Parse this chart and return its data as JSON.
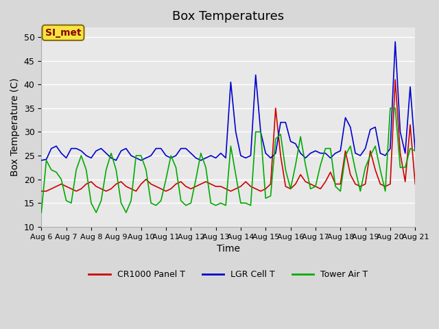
{
  "title": "Box Temperatures",
  "xlabel": "Time",
  "ylabel": "Box Temperature (C)",
  "ylim": [
    10,
    52
  ],
  "xlim": [
    0,
    15
  ],
  "background_color": "#e8e8e8",
  "plot_bg_color": "#e8e8e8",
  "grid_color": "white",
  "annotation_text": "SI_met",
  "annotation_bg": "#f5e642",
  "annotation_border": "#8B6914",
  "annotation_text_color": "#8B0000",
  "xtick_labels": [
    "Aug 6",
    "Aug 7",
    "Aug 8",
    "Aug 9",
    "Aug 10",
    "Aug 11",
    "Aug 12",
    "Aug 13",
    "Aug 14",
    "Aug 15",
    "Aug 16",
    "Aug 17",
    "Aug 18",
    "Aug 19",
    "Aug 20",
    "Aug 21"
  ],
  "ytick_values": [
    10,
    15,
    20,
    25,
    30,
    35,
    40,
    45,
    50
  ],
  "legend_entries": [
    "CR1000 Panel T",
    "LGR Cell T",
    "Tower Air T"
  ],
  "legend_colors": [
    "#cc0000",
    "#0000cc",
    "#00aa00"
  ],
  "series_colors": [
    "#cc0000",
    "#0000cc",
    "#00aa00"
  ],
  "red_x": [
    0,
    0.2,
    0.4,
    0.6,
    0.8,
    1.0,
    1.2,
    1.4,
    1.6,
    1.8,
    2.0,
    2.2,
    2.4,
    2.6,
    2.8,
    3.0,
    3.2,
    3.4,
    3.6,
    3.8,
    4.0,
    4.2,
    4.4,
    4.6,
    4.8,
    5.0,
    5.2,
    5.4,
    5.6,
    5.8,
    6.0,
    6.2,
    6.4,
    6.6,
    6.8,
    7.0,
    7.2,
    7.4,
    7.6,
    7.8,
    8.0,
    8.2,
    8.4,
    8.6,
    8.8,
    9.0,
    9.2,
    9.4,
    9.6,
    9.8,
    10.0,
    10.2,
    10.4,
    10.6,
    10.8,
    11.0,
    11.2,
    11.4,
    11.6,
    11.8,
    12.0,
    12.2,
    12.4,
    12.6,
    12.8,
    13.0,
    13.2,
    13.4,
    13.6,
    13.8,
    14.0,
    14.2,
    14.4,
    14.6,
    14.8,
    15.0
  ],
  "red_y": [
    17.5,
    17.5,
    18.0,
    18.5,
    19.0,
    18.5,
    18.0,
    17.5,
    18.0,
    19.0,
    19.5,
    18.5,
    18.0,
    17.5,
    18.0,
    19.0,
    19.5,
    18.5,
    18.0,
    17.5,
    19.0,
    20.0,
    19.0,
    18.5,
    18.0,
    17.5,
    18.0,
    19.0,
    19.5,
    18.5,
    18.0,
    18.5,
    19.0,
    19.5,
    19.0,
    18.5,
    18.5,
    18.0,
    17.5,
    18.0,
    18.5,
    19.5,
    18.5,
    18.0,
    17.5,
    18.0,
    19.0,
    35.0,
    25.0,
    18.5,
    18.0,
    19.0,
    21.0,
    19.5,
    19.0,
    18.5,
    18.0,
    19.5,
    21.5,
    19.0,
    19.0,
    26.0,
    21.0,
    19.0,
    18.5,
    19.0,
    26.0,
    22.0,
    19.0,
    18.5,
    19.0,
    41.0,
    25.5,
    19.5,
    31.5,
    19.0
  ],
  "blue_x": [
    0,
    0.2,
    0.4,
    0.6,
    0.8,
    1.0,
    1.2,
    1.4,
    1.6,
    1.8,
    2.0,
    2.2,
    2.4,
    2.6,
    2.8,
    3.0,
    3.2,
    3.4,
    3.6,
    3.8,
    4.0,
    4.2,
    4.4,
    4.6,
    4.8,
    5.0,
    5.2,
    5.4,
    5.6,
    5.8,
    6.0,
    6.2,
    6.4,
    6.6,
    6.8,
    7.0,
    7.2,
    7.4,
    7.6,
    7.8,
    8.0,
    8.2,
    8.4,
    8.6,
    8.8,
    9.0,
    9.2,
    9.4,
    9.6,
    9.8,
    10.0,
    10.2,
    10.4,
    10.6,
    10.8,
    11.0,
    11.2,
    11.4,
    11.6,
    11.8,
    12.0,
    12.2,
    12.4,
    12.6,
    12.8,
    13.0,
    13.2,
    13.4,
    13.6,
    13.8,
    14.0,
    14.2,
    14.4,
    14.6,
    14.8,
    15.0
  ],
  "blue_y": [
    24.0,
    24.2,
    26.5,
    27.0,
    25.5,
    24.5,
    26.5,
    26.5,
    26.0,
    25.0,
    24.5,
    26.0,
    26.5,
    25.5,
    24.5,
    24.0,
    26.0,
    26.5,
    25.0,
    24.5,
    24.0,
    24.5,
    25.0,
    26.5,
    26.5,
    25.0,
    24.5,
    25.0,
    26.5,
    26.5,
    25.5,
    24.5,
    24.0,
    24.5,
    25.0,
    24.5,
    25.5,
    24.5,
    40.5,
    30.0,
    25.0,
    24.5,
    25.0,
    42.0,
    30.0,
    25.5,
    24.5,
    25.5,
    32.0,
    32.0,
    28.0,
    27.5,
    25.5,
    24.5,
    25.5,
    26.0,
    25.5,
    25.5,
    24.5,
    25.5,
    26.0,
    33.0,
    31.0,
    25.5,
    25.0,
    26.5,
    30.5,
    31.0,
    25.5,
    25.0,
    26.5,
    49.0,
    30.0,
    25.5,
    39.5,
    26.0
  ],
  "green_x": [
    0,
    0.2,
    0.4,
    0.6,
    0.8,
    1.0,
    1.2,
    1.4,
    1.6,
    1.8,
    2.0,
    2.2,
    2.4,
    2.6,
    2.8,
    3.0,
    3.2,
    3.4,
    3.6,
    3.8,
    4.0,
    4.2,
    4.4,
    4.6,
    4.8,
    5.0,
    5.2,
    5.4,
    5.6,
    5.8,
    6.0,
    6.2,
    6.4,
    6.6,
    6.8,
    7.0,
    7.2,
    7.4,
    7.6,
    7.8,
    8.0,
    8.2,
    8.4,
    8.6,
    8.8,
    9.0,
    9.2,
    9.4,
    9.6,
    9.8,
    10.0,
    10.2,
    10.4,
    10.6,
    10.8,
    11.0,
    11.2,
    11.4,
    11.6,
    11.8,
    12.0,
    12.2,
    12.4,
    12.6,
    12.8,
    13.0,
    13.2,
    13.4,
    13.6,
    13.8,
    14.0,
    14.2,
    14.4,
    14.6,
    14.8,
    15.0
  ],
  "green_y": [
    13.0,
    24.0,
    22.0,
    21.5,
    20.0,
    15.5,
    15.0,
    22.0,
    25.0,
    22.0,
    15.0,
    13.0,
    15.5,
    22.0,
    25.5,
    22.0,
    15.0,
    13.0,
    15.5,
    25.0,
    25.0,
    22.0,
    15.0,
    14.5,
    15.5,
    20.0,
    25.0,
    22.5,
    15.5,
    14.5,
    15.0,
    20.0,
    25.5,
    22.5,
    15.0,
    14.5,
    15.0,
    14.5,
    27.0,
    21.0,
    15.0,
    15.0,
    14.5,
    30.0,
    30.0,
    16.0,
    16.5,
    28.5,
    29.5,
    22.0,
    18.0,
    23.0,
    29.0,
    23.0,
    18.0,
    18.5,
    23.0,
    26.5,
    26.5,
    18.5,
    17.5,
    25.0,
    27.0,
    22.0,
    17.5,
    22.5,
    25.0,
    27.0,
    22.0,
    17.5,
    35.0,
    35.0,
    22.5,
    22.5,
    26.5,
    26.0
  ]
}
